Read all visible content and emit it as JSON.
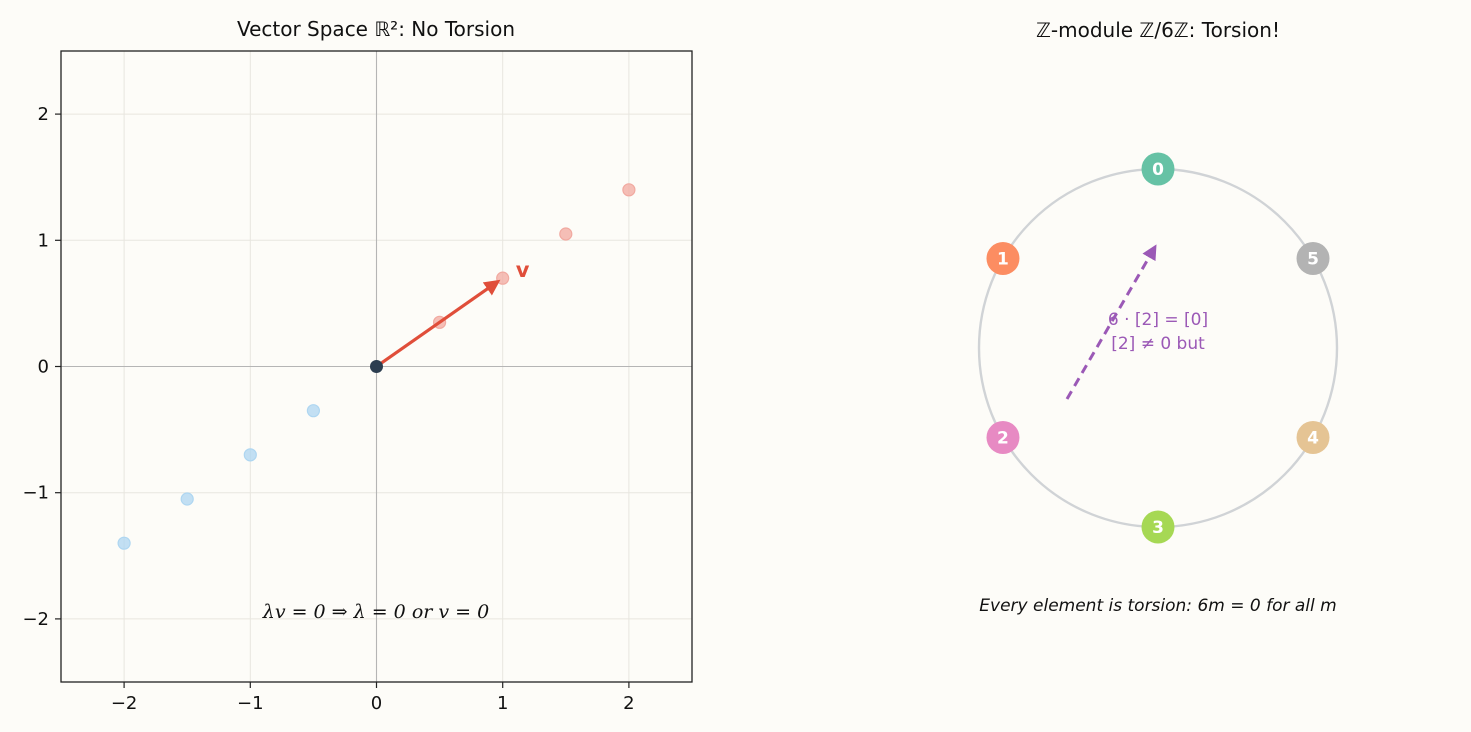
{
  "chart_data": [
    {
      "type": "scatter",
      "title": "Vector Space ℝ²: No Torsion",
      "xlim": [
        -2.5,
        2.5
      ],
      "ylim": [
        -2.5,
        2.5
      ],
      "x_ticks": [
        -2,
        -1,
        0,
        1,
        2
      ],
      "y_ticks": [
        -2,
        -1,
        0,
        1,
        2
      ],
      "x_tick_labels": [
        "−2",
        "−1",
        "0",
        "1",
        "2"
      ],
      "y_tick_labels": [
        "−2",
        "−1",
        "0",
        "1",
        "2"
      ],
      "grid": true,
      "origin": {
        "x": 0,
        "y": 0,
        "color": "#2c3e50"
      },
      "vector": {
        "from": [
          0,
          0
        ],
        "to": [
          1,
          0.7
        ],
        "label": "v",
        "color": "#e04e3a"
      },
      "positive_multiples": {
        "color": "#f1a9a0",
        "points": [
          {
            "x": 0.5,
            "y": 0.35
          },
          {
            "x": 1.0,
            "y": 0.7
          },
          {
            "x": 1.5,
            "y": 1.05
          },
          {
            "x": 2.0,
            "y": 1.4
          }
        ]
      },
      "negative_multiples": {
        "color": "#aed6f1",
        "points": [
          {
            "x": -0.5,
            "y": -0.35
          },
          {
            "x": -1.0,
            "y": -0.7
          },
          {
            "x": -1.5,
            "y": -1.05
          },
          {
            "x": -2.0,
            "y": -1.4
          }
        ]
      },
      "annotation": "λv = 0 ⇒ λ = 0 or v = 0"
    },
    {
      "type": "diagram",
      "title": "ℤ-module ℤ/6ℤ: Torsion!",
      "ring_color": "#d0d3d6",
      "nodes": [
        {
          "label": "0",
          "angle_deg": 90,
          "color": "#66c2a5"
        },
        {
          "label": "1",
          "angle_deg": 150,
          "color": "#fc8d62"
        },
        {
          "label": "2",
          "angle_deg": 210,
          "color": "#e78ac3"
        },
        {
          "label": "3",
          "angle_deg": 270,
          "color": "#a6d854"
        },
        {
          "label": "4",
          "angle_deg": 330,
          "color": "#e5c494"
        },
        {
          "label": "5",
          "angle_deg": 30,
          "color": "#b3b3b3"
        }
      ],
      "arrow_color": "#9b59b6",
      "arrow_text_line1": "6 · [2] = [0]",
      "arrow_text_line2": "[2] ≠ 0 but",
      "caption": "Every element is torsion: 6m = 0 for all m"
    }
  ]
}
